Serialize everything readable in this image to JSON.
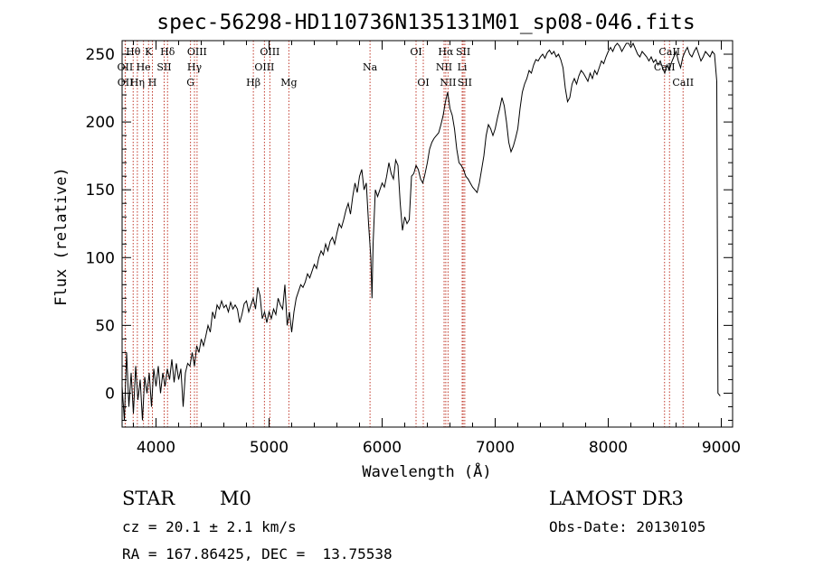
{
  "chart_data": {
    "type": "line",
    "title": "spec-56298-HD110736N135131M01_sp08-046.fits",
    "xlabel": "Wavelength (Å)",
    "ylabel": "Flux (relative)",
    "xlim": [
      3700,
      9100
    ],
    "ylim": [
      -25,
      260
    ],
    "xticks": [
      4000,
      5000,
      6000,
      7000,
      8000,
      9000
    ],
    "yticks": [
      0,
      50,
      100,
      150,
      200,
      250
    ],
    "grid": false,
    "series": [
      {
        "name": "flux",
        "points": [
          [
            3700,
            5
          ],
          [
            3720,
            -20
          ],
          [
            3740,
            30
          ],
          [
            3760,
            -10
          ],
          [
            3780,
            15
          ],
          [
            3800,
            -15
          ],
          [
            3820,
            20
          ],
          [
            3840,
            -5
          ],
          [
            3860,
            10
          ],
          [
            3880,
            -20
          ],
          [
            3900,
            12
          ],
          [
            3920,
            0
          ],
          [
            3940,
            15
          ],
          [
            3960,
            -10
          ],
          [
            3980,
            18
          ],
          [
            4000,
            5
          ],
          [
            4020,
            20
          ],
          [
            4040,
            0
          ],
          [
            4060,
            15
          ],
          [
            4080,
            5
          ],
          [
            4100,
            18
          ],
          [
            4120,
            10
          ],
          [
            4140,
            25
          ],
          [
            4160,
            8
          ],
          [
            4180,
            22
          ],
          [
            4200,
            10
          ],
          [
            4220,
            18
          ],
          [
            4240,
            -10
          ],
          [
            4260,
            15
          ],
          [
            4280,
            22
          ],
          [
            4300,
            20
          ],
          [
            4320,
            30
          ],
          [
            4340,
            20
          ],
          [
            4360,
            35
          ],
          [
            4380,
            30
          ],
          [
            4400,
            40
          ],
          [
            4420,
            35
          ],
          [
            4440,
            42
          ],
          [
            4460,
            50
          ],
          [
            4480,
            45
          ],
          [
            4500,
            60
          ],
          [
            4520,
            55
          ],
          [
            4540,
            65
          ],
          [
            4560,
            62
          ],
          [
            4580,
            68
          ],
          [
            4600,
            63
          ],
          [
            4620,
            65
          ],
          [
            4640,
            60
          ],
          [
            4660,
            67
          ],
          [
            4680,
            62
          ],
          [
            4700,
            65
          ],
          [
            4720,
            62
          ],
          [
            4740,
            52
          ],
          [
            4760,
            58
          ],
          [
            4780,
            66
          ],
          [
            4800,
            68
          ],
          [
            4820,
            60
          ],
          [
            4840,
            65
          ],
          [
            4860,
            70
          ],
          [
            4880,
            62
          ],
          [
            4900,
            78
          ],
          [
            4920,
            72
          ],
          [
            4940,
            55
          ],
          [
            4960,
            60
          ],
          [
            4980,
            52
          ],
          [
            5000,
            60
          ],
          [
            5020,
            55
          ],
          [
            5040,
            62
          ],
          [
            5060,
            58
          ],
          [
            5080,
            70
          ],
          [
            5100,
            65
          ],
          [
            5120,
            62
          ],
          [
            5140,
            80
          ],
          [
            5160,
            50
          ],
          [
            5180,
            60
          ],
          [
            5200,
            45
          ],
          [
            5220,
            60
          ],
          [
            5240,
            70
          ],
          [
            5260,
            75
          ],
          [
            5280,
            80
          ],
          [
            5300,
            78
          ],
          [
            5320,
            82
          ],
          [
            5340,
            88
          ],
          [
            5360,
            85
          ],
          [
            5380,
            90
          ],
          [
            5400,
            95
          ],
          [
            5420,
            92
          ],
          [
            5440,
            100
          ],
          [
            5460,
            105
          ],
          [
            5480,
            102
          ],
          [
            5500,
            110
          ],
          [
            5520,
            105
          ],
          [
            5540,
            112
          ],
          [
            5560,
            115
          ],
          [
            5580,
            110
          ],
          [
            5600,
            118
          ],
          [
            5620,
            125
          ],
          [
            5640,
            122
          ],
          [
            5660,
            128
          ],
          [
            5680,
            135
          ],
          [
            5700,
            140
          ],
          [
            5720,
            132
          ],
          [
            5740,
            145
          ],
          [
            5760,
            155
          ],
          [
            5780,
            148
          ],
          [
            5800,
            160
          ],
          [
            5820,
            165
          ],
          [
            5840,
            150
          ],
          [
            5860,
            155
          ],
          [
            5880,
            125
          ],
          [
            5900,
            100
          ],
          [
            5910,
            70
          ],
          [
            5920,
            110
          ],
          [
            5940,
            150
          ],
          [
            5960,
            145
          ],
          [
            5980,
            150
          ],
          [
            6000,
            155
          ],
          [
            6020,
            152
          ],
          [
            6040,
            160
          ],
          [
            6060,
            170
          ],
          [
            6080,
            162
          ],
          [
            6100,
            158
          ],
          [
            6120,
            172
          ],
          [
            6140,
            168
          ],
          [
            6160,
            140
          ],
          [
            6180,
            120
          ],
          [
            6200,
            130
          ],
          [
            6220,
            125
          ],
          [
            6240,
            128
          ],
          [
            6260,
            160
          ],
          [
            6280,
            162
          ],
          [
            6300,
            168
          ],
          [
            6320,
            165
          ],
          [
            6340,
            158
          ],
          [
            6360,
            155
          ],
          [
            6380,
            162
          ],
          [
            6400,
            170
          ],
          [
            6420,
            180
          ],
          [
            6440,
            185
          ],
          [
            6460,
            188
          ],
          [
            6480,
            190
          ],
          [
            6500,
            192
          ],
          [
            6520,
            198
          ],
          [
            6540,
            205
          ],
          [
            6560,
            215
          ],
          [
            6580,
            222
          ],
          [
            6600,
            210
          ],
          [
            6620,
            205
          ],
          [
            6640,
            195
          ],
          [
            6660,
            180
          ],
          [
            6680,
            170
          ],
          [
            6700,
            168
          ],
          [
            6720,
            165
          ],
          [
            6740,
            160
          ],
          [
            6760,
            158
          ],
          [
            6780,
            155
          ],
          [
            6800,
            152
          ],
          [
            6820,
            150
          ],
          [
            6840,
            148
          ],
          [
            6860,
            155
          ],
          [
            6880,
            165
          ],
          [
            6900,
            175
          ],
          [
            6920,
            190
          ],
          [
            6940,
            198
          ],
          [
            6960,
            195
          ],
          [
            6980,
            190
          ],
          [
            7000,
            195
          ],
          [
            7020,
            203
          ],
          [
            7040,
            210
          ],
          [
            7060,
            218
          ],
          [
            7080,
            212
          ],
          [
            7100,
            200
          ],
          [
            7120,
            185
          ],
          [
            7140,
            178
          ],
          [
            7160,
            182
          ],
          [
            7180,
            188
          ],
          [
            7200,
            195
          ],
          [
            7220,
            210
          ],
          [
            7240,
            222
          ],
          [
            7260,
            228
          ],
          [
            7280,
            232
          ],
          [
            7300,
            238
          ],
          [
            7320,
            236
          ],
          [
            7340,
            242
          ],
          [
            7360,
            246
          ],
          [
            7380,
            245
          ],
          [
            7400,
            248
          ],
          [
            7420,
            250
          ],
          [
            7440,
            247
          ],
          [
            7460,
            251
          ],
          [
            7480,
            253
          ],
          [
            7500,
            250
          ],
          [
            7520,
            252
          ],
          [
            7540,
            248
          ],
          [
            7560,
            250
          ],
          [
            7580,
            246
          ],
          [
            7600,
            240
          ],
          [
            7620,
            225
          ],
          [
            7640,
            215
          ],
          [
            7660,
            218
          ],
          [
            7680,
            228
          ],
          [
            7700,
            232
          ],
          [
            7720,
            228
          ],
          [
            7740,
            234
          ],
          [
            7760,
            238
          ],
          [
            7780,
            236
          ],
          [
            7800,
            233
          ],
          [
            7820,
            230
          ],
          [
            7840,
            236
          ],
          [
            7860,
            232
          ],
          [
            7880,
            238
          ],
          [
            7900,
            235
          ],
          [
            7920,
            240
          ],
          [
            7940,
            245
          ],
          [
            7960,
            243
          ],
          [
            7980,
            248
          ],
          [
            8000,
            252
          ],
          [
            8020,
            255
          ],
          [
            8040,
            252
          ],
          [
            8060,
            256
          ],
          [
            8080,
            258
          ],
          [
            8100,
            256
          ],
          [
            8120,
            252
          ],
          [
            8140,
            255
          ],
          [
            8160,
            258
          ],
          [
            8180,
            258
          ],
          [
            8200,
            255
          ],
          [
            8220,
            258
          ],
          [
            8240,
            254
          ],
          [
            8260,
            250
          ],
          [
            8280,
            248
          ],
          [
            8300,
            252
          ],
          [
            8320,
            250
          ],
          [
            8340,
            248
          ],
          [
            8360,
            245
          ],
          [
            8380,
            248
          ],
          [
            8400,
            244
          ],
          [
            8420,
            246
          ],
          [
            8440,
            242
          ],
          [
            8460,
            245
          ],
          [
            8480,
            240
          ],
          [
            8500,
            236
          ],
          [
            8520,
            242
          ],
          [
            8540,
            238
          ],
          [
            8560,
            244
          ],
          [
            8580,
            248
          ],
          [
            8600,
            252
          ],
          [
            8620,
            245
          ],
          [
            8640,
            240
          ],
          [
            8660,
            248
          ],
          [
            8680,
            252
          ],
          [
            8700,
            255
          ],
          [
            8720,
            250
          ],
          [
            8740,
            248
          ],
          [
            8760,
            252
          ],
          [
            8780,
            255
          ],
          [
            8800,
            250
          ],
          [
            8820,
            245
          ],
          [
            8840,
            248
          ],
          [
            8860,
            252
          ],
          [
            8880,
            250
          ],
          [
            8900,
            248
          ],
          [
            8920,
            252
          ],
          [
            8940,
            250
          ],
          [
            8960,
            230
          ],
          [
            8970,
            0
          ],
          [
            8990,
            -2
          ]
        ]
      }
    ],
    "lines": [
      {
        "name": "Hθ",
        "wave": 3798,
        "row": 0
      },
      {
        "name": "K",
        "wave": 3934,
        "row": 0
      },
      {
        "name": "Hδ",
        "wave": 4102,
        "row": 0
      },
      {
        "name": "OIII",
        "wave": 4363,
        "row": 0
      },
      {
        "name": "OIII",
        "wave": 5007,
        "row": 0
      },
      {
        "name": "OI",
        "wave": 6300,
        "row": 0
      },
      {
        "name": "Hα",
        "wave": 6563,
        "row": 0
      },
      {
        "name": "SII",
        "wave": 6717,
        "row": 0
      },
      {
        "name": "CaII",
        "wave": 8542,
        "row": 0
      },
      {
        "name": "OII",
        "wave": 3727,
        "row": 1
      },
      {
        "name": "He",
        "wave": 3889,
        "row": 1
      },
      {
        "name": "SII",
        "wave": 4072,
        "row": 1
      },
      {
        "name": "Hγ",
        "wave": 4340,
        "row": 1
      },
      {
        "name": "OIII",
        "wave": 4959,
        "row": 1
      },
      {
        "name": "Na",
        "wave": 5893,
        "row": 1
      },
      {
        "name": "NII",
        "wave": 6548,
        "row": 1
      },
      {
        "name": "Li",
        "wave": 6708,
        "row": 1
      },
      {
        "name": "CaII",
        "wave": 8498,
        "row": 1
      },
      {
        "name": "OII",
        "wave": 3729,
        "row": 2
      },
      {
        "name": "Hη",
        "wave": 3835,
        "row": 2
      },
      {
        "name": "H",
        "wave": 3968,
        "row": 2
      },
      {
        "name": "G",
        "wave": 4305,
        "row": 2
      },
      {
        "name": "Hβ",
        "wave": 4861,
        "row": 2
      },
      {
        "name": "Mg",
        "wave": 5175,
        "row": 2
      },
      {
        "name": "OI",
        "wave": 6364,
        "row": 2
      },
      {
        "name": "NII",
        "wave": 6583,
        "row": 2
      },
      {
        "name": "SII",
        "wave": 6731,
        "row": 2
      },
      {
        "name": "CaII",
        "wave": 8662,
        "row": 2
      }
    ]
  },
  "info": {
    "class": "STAR",
    "subclass": "M0",
    "survey": "LAMOST DR3",
    "cz": "cz = 20.1 ± 2.1 km/s",
    "obs_date": "Obs-Date: 20130105",
    "coords": "RA = 167.86425, DEC =  13.75538"
  }
}
